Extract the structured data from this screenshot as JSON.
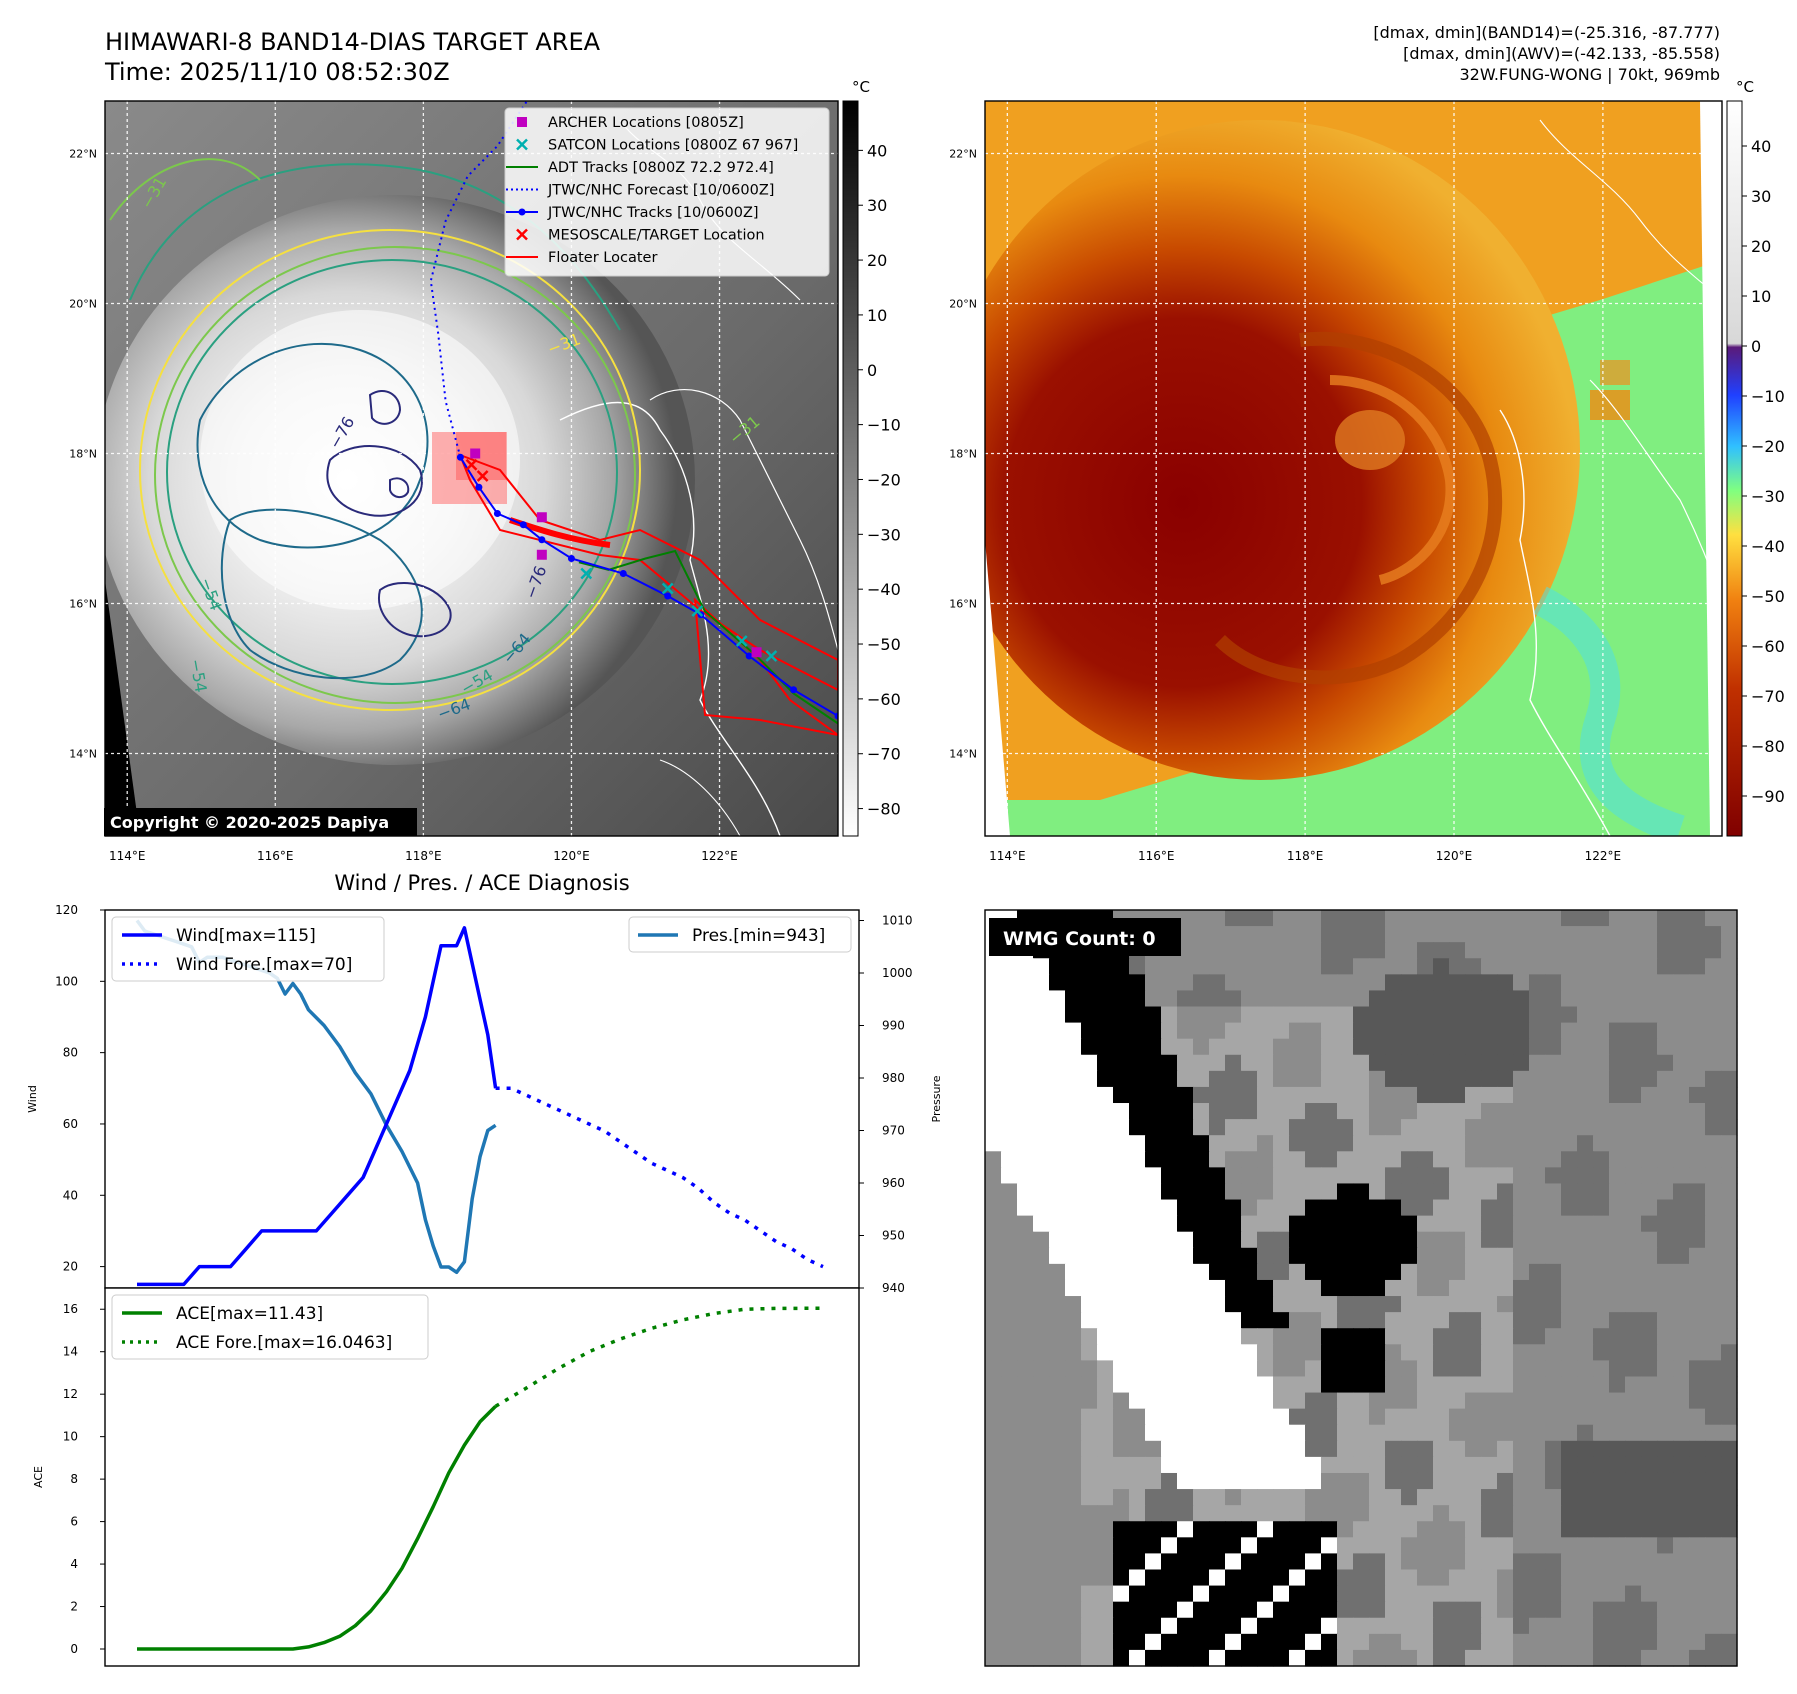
{
  "header": {
    "title_line1": "HIMAWARI-8 BAND14-DIAS TARGET AREA",
    "title_line2": "Time: 2025/11/10 08:52:30Z",
    "info_line1": "[dmax, dmin](BAND14)=(-25.316, -87.777)",
    "info_line2": "[dmax, dmin](AWV)=(-42.133, -85.558)",
    "info_line3": "32W.FUNG-WONG | 70kt, 969mb"
  },
  "colors": {
    "wind": "#0000ff",
    "pressure": "#1f77b4",
    "ace": "#008000",
    "jtwc_track": "#0000ff",
    "adt_track": "#008000",
    "floater": "#ff0000",
    "archer": "#c000c0",
    "satcon": "#00b0b0"
  },
  "map_axes": {
    "lon_ticks": [
      "114°E",
      "116°E",
      "118°E",
      "120°E",
      "122°E"
    ],
    "lat_ticks": [
      "22°N",
      "20°N",
      "18°N",
      "16°N",
      "14°N"
    ],
    "lon_values": [
      114,
      116,
      118,
      120,
      122
    ],
    "lat_values": [
      22,
      20,
      18,
      16,
      14
    ],
    "lon_range": [
      113.7,
      123.6
    ],
    "lat_range": [
      12.9,
      22.7
    ]
  },
  "ir_panel": {
    "legend": [
      {
        "label": "ARCHER Locations [0805Z]",
        "marker": "square",
        "color": "#c000c0"
      },
      {
        "label": "SATCON Locations [0800Z 67 967]",
        "marker": "x",
        "color": "#00b0b0"
      },
      {
        "label": "ADT Tracks [0800Z 72.2 972.4]",
        "marker": "line",
        "color": "#008000"
      },
      {
        "label": "JTWC/NHC Forecast [10/0600Z]",
        "marker": "dotted",
        "color": "#0000ff"
      },
      {
        "label": "JTWC/NHC Tracks [10/0600Z]",
        "marker": "line-dot",
        "color": "#0000ff"
      },
      {
        "label": "MESOSCALE/TARGET Location",
        "marker": "x",
        "color": "#ff0000"
      },
      {
        "label": "Floater Locater",
        "marker": "line",
        "color": "#ff0000"
      }
    ],
    "copyright": "Copyright © 2020-2025 Dapiya",
    "colorbar_unit": "°C",
    "colorbar_ticks": [
      "40",
      "30",
      "20",
      "10",
      "0",
      "−10",
      "−20",
      "−30",
      "−40",
      "−50",
      "−60",
      "−70",
      "−80"
    ],
    "colorbar_tick_values": [
      40,
      30,
      20,
      10,
      0,
      -10,
      -20,
      -30,
      -40,
      -50,
      -60,
      -70,
      -80
    ],
    "colorbar_range": [
      -85,
      49
    ],
    "contour_labels": [
      "−76",
      "−54",
      "−64",
      "−54",
      "−76",
      "−64",
      "−54",
      "−31",
      "−31",
      "−31"
    ],
    "jtwc_track": [
      [
        123.6,
        14.5
      ],
      [
        123.0,
        14.85
      ],
      [
        122.4,
        15.3
      ],
      [
        121.75,
        15.85
      ],
      [
        121.3,
        16.1
      ],
      [
        120.7,
        16.4
      ],
      [
        120.0,
        16.6
      ],
      [
        119.6,
        16.85
      ],
      [
        119.35,
        17.05
      ],
      [
        119.0,
        17.2
      ],
      [
        118.75,
        17.55
      ],
      [
        118.5,
        17.95
      ]
    ],
    "jtwc_forecast": [
      [
        118.5,
        17.95
      ],
      [
        118.3,
        18.7
      ],
      [
        118.2,
        19.6
      ],
      [
        118.1,
        20.3
      ],
      [
        118.3,
        21.1
      ],
      [
        118.6,
        21.7
      ],
      [
        119.0,
        22.1
      ],
      [
        119.4,
        22.7
      ]
    ],
    "adt_track": [
      [
        123.6,
        14.4
      ],
      [
        123.0,
        14.8
      ],
      [
        122.5,
        15.3
      ],
      [
        121.8,
        15.9
      ],
      [
        121.4,
        16.7
      ],
      [
        121.0,
        16.6
      ],
      [
        120.5,
        16.45
      ],
      [
        120.1,
        16.55
      ]
    ],
    "archer_points": [
      [
        119.6,
        17.15
      ],
      [
        119.6,
        16.65
      ],
      [
        118.7,
        18.0
      ],
      [
        122.5,
        15.35
      ]
    ],
    "satcon_points": [
      [
        122.3,
        15.5
      ],
      [
        121.7,
        15.9
      ],
      [
        121.3,
        16.2
      ],
      [
        120.2,
        16.4
      ],
      [
        122.7,
        15.3
      ]
    ],
    "target_points": [
      [
        118.65,
        17.85
      ],
      [
        118.8,
        17.7
      ]
    ]
  },
  "awv_panel": {
    "colorbar_unit": "°C",
    "colorbar_ticks": [
      "40",
      "30",
      "20",
      "10",
      "0",
      "−10",
      "−20",
      "−30",
      "−40",
      "−50",
      "−60",
      "−70",
      "−80",
      "−90"
    ],
    "colorbar_tick_values": [
      40,
      30,
      20,
      10,
      0,
      -10,
      -20,
      -30,
      -40,
      -50,
      -60,
      -70,
      -80,
      -90
    ],
    "colorbar_range": [
      -98,
      49
    ]
  },
  "chart_data": [
    {
      "type": "line",
      "title": "Wind / Pres. / ACE Diagnosis",
      "xlabel": "",
      "ylabel": "Wind",
      "y2label": "Pressure",
      "ylim": [
        14,
        120
      ],
      "y2lim": [
        940,
        1012
      ],
      "yticks": [
        20,
        40,
        60,
        80,
        100,
        120
      ],
      "y2ticks": [
        940,
        950,
        960,
        970,
        980,
        990,
        1000,
        1010
      ],
      "series": [
        {
          "name": "Wind[max=115]",
          "axis": "left",
          "style": "solid",
          "x": [
            0,
            3,
            4,
            6,
            8,
            10,
            12,
            14,
            16,
            18,
            19,
            20,
            21,
            22,
            23,
            25,
            27,
            29,
            31,
            33,
            35,
            37,
            38,
            39,
            40,
            41,
            42,
            43,
            44,
            45,
            46
          ],
          "values": [
            15,
            15,
            15,
            15,
            20,
            20,
            20,
            25,
            30,
            30,
            30,
            30,
            30,
            30,
            30,
            35,
            40,
            45,
            55,
            65,
            75,
            90,
            100,
            110,
            110,
            110,
            115,
            105,
            95,
            85,
            70
          ]
        },
        {
          "name": "Wind Fore.[max=70]",
          "axis": "left",
          "style": "dotted",
          "x": [
            46,
            48,
            50,
            52,
            54,
            56,
            58,
            60,
            62,
            64,
            66,
            68,
            70,
            72,
            74,
            76,
            78,
            80,
            82,
            84,
            86,
            88
          ],
          "values": [
            70,
            70,
            68,
            66,
            64,
            62,
            60,
            58,
            55,
            52,
            49,
            47,
            45,
            42,
            38,
            35,
            33,
            30,
            27,
            25,
            22,
            20
          ]
        },
        {
          "name": "Pres.[min=943]",
          "axis": "right",
          "style": "solid",
          "x": [
            0,
            1,
            3,
            5,
            7,
            8,
            9,
            11,
            13,
            15,
            17,
            18,
            19,
            20,
            21,
            22,
            24,
            26,
            28,
            30,
            32,
            34,
            36,
            37,
            38,
            39,
            40,
            41,
            42,
            43,
            44,
            45,
            46
          ],
          "values": [
            1010,
            1008,
            1007,
            1006,
            1005,
            1002,
            1003,
            1003,
            1002,
            1001,
            1000,
            999,
            996,
            998,
            996,
            993,
            990,
            986,
            981,
            977,
            971,
            966,
            960,
            953,
            948,
            944,
            944,
            943,
            945,
            957,
            965,
            970,
            971
          ]
        },
        {
          "name": "ACE[max=11.43]",
          "axis": "ace",
          "style": "solid",
          "x": [
            0,
            4,
            8,
            12,
            16,
            20,
            22,
            24,
            26,
            28,
            30,
            32,
            34,
            36,
            38,
            40,
            42,
            44,
            46
          ],
          "values": [
            0,
            0,
            0,
            0,
            0,
            0,
            0.1,
            0.3,
            0.6,
            1.1,
            1.8,
            2.7,
            3.8,
            5.2,
            6.7,
            8.3,
            9.6,
            10.7,
            11.43
          ]
        },
        {
          "name": "ACE Fore.[max=16.0463]",
          "axis": "ace",
          "style": "dotted",
          "x": [
            46,
            50,
            54,
            58,
            62,
            66,
            70,
            74,
            78,
            82,
            86,
            88
          ],
          "values": [
            11.43,
            12.3,
            13.2,
            14.0,
            14.6,
            15.1,
            15.5,
            15.8,
            16.0,
            16.04,
            16.0463,
            16.0463
          ]
        }
      ]
    },
    {
      "type": "line",
      "title": "",
      "xlabel": "",
      "ylabel": "ACE",
      "ylim": [
        -0.8,
        17
      ],
      "yticks": [
        0,
        2,
        4,
        6,
        8,
        10,
        12,
        14,
        16
      ]
    }
  ],
  "wmg_panel": {
    "label": "WMG Count: 0"
  }
}
